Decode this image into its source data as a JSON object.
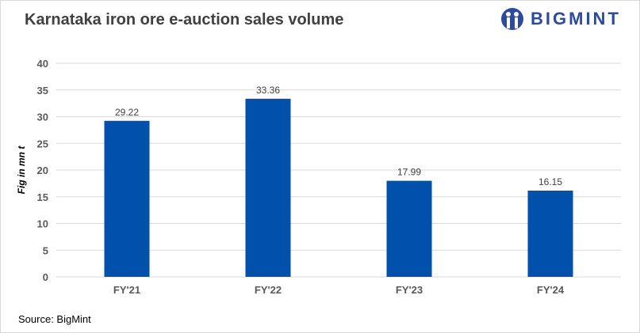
{
  "brand": {
    "name": "BIGMINT",
    "color": "#2b4aa0"
  },
  "source": "Source: BigMint",
  "chart_data": {
    "type": "bar",
    "title": "Karnataka iron ore e-auction sales volume",
    "categories": [
      "FY'21",
      "FY'22",
      "FY'23",
      "FY'24"
    ],
    "values": [
      29.22,
      33.36,
      17.99,
      16.15
    ],
    "data_labels": [
      "29.22",
      "33.36",
      "17.99",
      "16.15"
    ],
    "xlabel": "",
    "ylabel": "Fig in mn t",
    "ylim": [
      0,
      40
    ],
    "yticks": [
      0,
      5,
      10,
      15,
      20,
      25,
      30,
      35,
      40
    ],
    "grid": true,
    "bar_color": "#0050ac"
  }
}
